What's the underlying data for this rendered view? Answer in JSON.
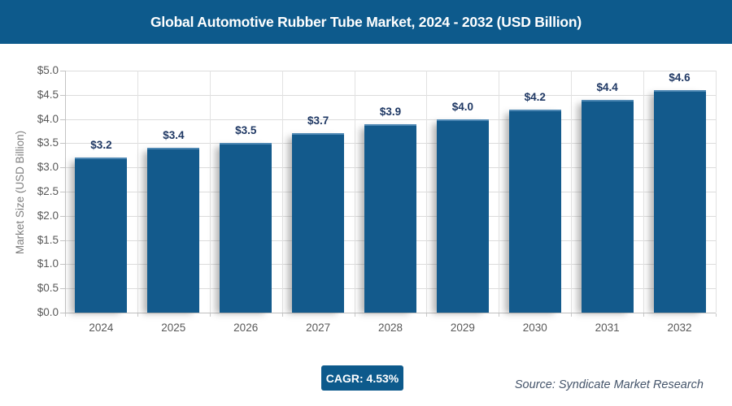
{
  "header": {
    "title": "Global Automotive Rubber Tube Market, 2024 - 2032 (USD Billion)"
  },
  "chart_data": {
    "type": "bar",
    "title": "Global Automotive Rubber Tube Market, 2024 - 2032 (USD Billion)",
    "categories": [
      "2024",
      "2025",
      "2026",
      "2027",
      "2028",
      "2029",
      "2030",
      "2031",
      "2032"
    ],
    "values": [
      3.2,
      3.4,
      3.5,
      3.7,
      3.9,
      4.0,
      4.2,
      4.4,
      4.6
    ],
    "bar_labels": [
      "$3.2",
      "$3.4",
      "$3.5",
      "$3.7",
      "$3.9",
      "$4.0",
      "$4.2",
      "$4.4",
      "$4.6"
    ],
    "xlabel": "",
    "ylabel": "Market Size (USD Billion)",
    "ylim": [
      0,
      5
    ],
    "ytick_step": 0.5,
    "ytick_labels": [
      "$0.0",
      "$0.5",
      "$1.0",
      "$1.5",
      "$2.0",
      "$2.5",
      "$3.0",
      "$3.5",
      "$4.0",
      "$4.5",
      "$5.0"
    ],
    "grid": "horizontal and vertical, light gray",
    "legend": "none"
  },
  "footer": {
    "cagr_label": "CAGR: 4.53%",
    "source": "Source: Syndicate Market Research"
  },
  "colors": {
    "banner_bg": "#0d5a8c",
    "title_text": "#ffffff",
    "bar_fill": "#135a8c",
    "bar_top_highlight": "#4d87b3",
    "data_label": "#1f3864",
    "axis_text": "#595959",
    "axis_title_text": "#7f7f7f",
    "gridline": "#dcdcdc",
    "axis_line": "#bfbfbf",
    "cagr_bg": "#0d5a8c",
    "source_text": "#44546a"
  }
}
